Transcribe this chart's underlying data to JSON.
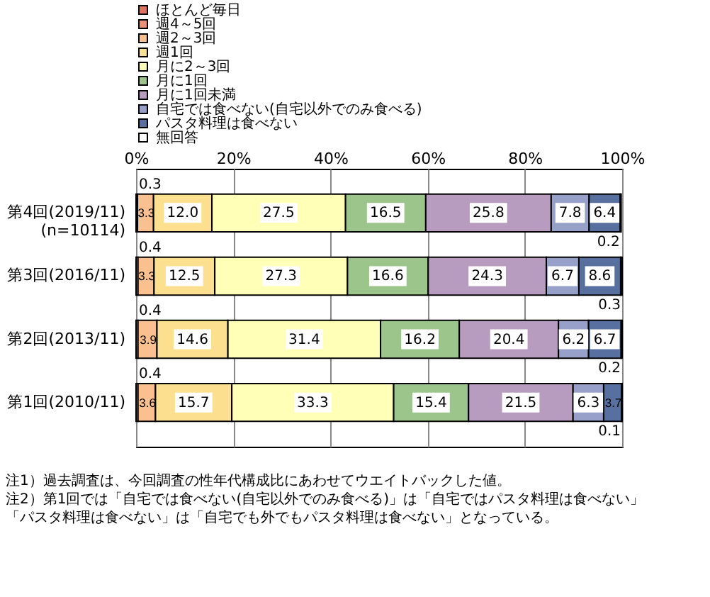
{
  "chart_data": {
    "type": "bar",
    "orientation": "horizontal",
    "stacked": true,
    "data_labels": true,
    "grid": "x",
    "legend": "top",
    "categories": [
      "第4回(2019/11)\n(n=10114)",
      "第3回(2016/11)",
      "第2回(2013/11)",
      "第1回(2010/11)"
    ],
    "xlim": [
      0,
      100
    ],
    "xticks": [
      {
        "value": 0,
        "label": "0%"
      },
      {
        "value": 20,
        "label": "20%"
      },
      {
        "value": 40,
        "label": "40%"
      },
      {
        "value": 60,
        "label": "60%"
      },
      {
        "value": 80,
        "label": "80%"
      },
      {
        "value": 100,
        "label": "100%"
      }
    ],
    "series": [
      {
        "name": "ほとんど毎日",
        "color": "#e07060",
        "values": [
          null,
          null,
          null,
          null
        ]
      },
      {
        "name": "週4～5回",
        "color": "#f09078",
        "values": [
          0.3,
          0.4,
          0.4,
          0.4
        ],
        "value_labels": [
          "0.3",
          "0.4",
          "0.4",
          "0.4"
        ]
      },
      {
        "name": "週2～3回",
        "color": "#fac090",
        "values": [
          3.3,
          3.3,
          3.9,
          3.6
        ],
        "value_labels": [
          "3.3",
          "3.3",
          "3.9",
          "3.6"
        ]
      },
      {
        "name": "週1回",
        "color": "#fde08f",
        "values": [
          12.0,
          12.5,
          14.6,
          15.7
        ],
        "value_labels": [
          "12.0",
          "12.5",
          "14.6",
          "15.7"
        ]
      },
      {
        "name": "月に2～3回",
        "color": "#ffffb8",
        "values": [
          27.5,
          27.3,
          31.4,
          33.3
        ],
        "value_labels": [
          "27.5",
          "27.3",
          "31.4",
          "33.3"
        ]
      },
      {
        "name": "月に1回",
        "color": "#9bc58a",
        "values": [
          16.5,
          16.6,
          16.2,
          15.4
        ],
        "value_labels": [
          "16.5",
          "16.6",
          "16.2",
          "15.4"
        ]
      },
      {
        "name": "月に1回未満",
        "color": "#b89cbf",
        "values": [
          25.8,
          24.3,
          20.4,
          21.5
        ],
        "value_labels": [
          "25.8",
          "24.3",
          "20.4",
          "21.5"
        ]
      },
      {
        "name": "自宅では食べない(自宅以外でのみ食べる)",
        "color": "#97a0c8",
        "values": [
          7.8,
          6.7,
          6.2,
          6.3
        ],
        "value_labels": [
          "7.8",
          "6.7",
          "6.2",
          "6.3"
        ]
      },
      {
        "name": "パスタ料理は食べない",
        "color": "#5870a0",
        "values": [
          6.4,
          8.6,
          6.7,
          3.7
        ],
        "value_labels": [
          "6.4",
          "8.6",
          "6.7",
          "3.7"
        ]
      },
      {
        "name": "無回答",
        "color": "#ffffff",
        "values": [
          0.2,
          0.3,
          0.2,
          0.1
        ],
        "value_labels": [
          "0.2",
          "0.3",
          "0.2",
          "0.1"
        ]
      }
    ],
    "annotations": [
      "注1）過去調査は、今回調査の性年代構成比にあわせてウエイトバックした値。",
      "注2）第1回では「自宅では食べない(自宅以外でのみ食べる)」は「自宅ではパスタ料理は食べない」",
      "「パスタ料理は食べない」は「自宅でも外でもパスタ料理は食べない」となっている。"
    ]
  }
}
